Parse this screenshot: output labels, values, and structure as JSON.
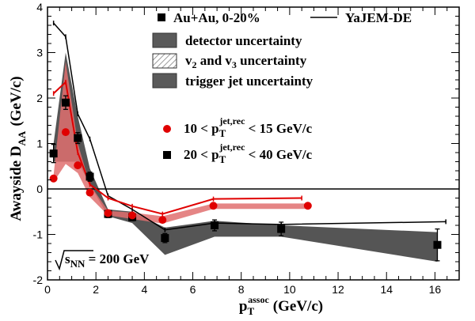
{
  "chart_data": {
    "type": "scatter",
    "title": "",
    "xlabel": "p_T^assoc (GeV/c)",
    "xlabel_main": "p",
    "xlabel_sub": "T",
    "xlabel_sup": "assoc",
    "xlabel_unit": "(GeV/c)",
    "ylabel": "Awayside D_AA (GeV/c)",
    "ylabel_main": "Awayside D",
    "ylabel_sub": "AA",
    "ylabel_unit": "(GeV/c)",
    "xlim": [
      0,
      17
    ],
    "ylim": [
      -2,
      4
    ],
    "x_ticks": [
      0,
      2,
      4,
      6,
      8,
      10,
      12,
      14,
      16
    ],
    "x_tick_labels": [
      "0",
      "2",
      "4",
      "6",
      "8",
      "10",
      "12",
      "14",
      "16"
    ],
    "y_ticks": [
      -2,
      -1,
      0,
      1,
      2,
      3,
      4
    ],
    "y_tick_labels": [
      "-2",
      "-1",
      "0",
      "1",
      "2",
      "3",
      "4"
    ],
    "energy_label": {
      "prefix": "s",
      "sub": "NN",
      "suffix": " = 200 GeV"
    },
    "legend": {
      "position": "top-right",
      "entries": [
        {
          "label": "Au+Au, 0-20%",
          "marker": "square"
        },
        {
          "label": "YaJEM-DE",
          "marker": "line"
        },
        {
          "label": "detector uncertainty",
          "marker": "box-dark"
        },
        {
          "label": "v2 and v3 uncertainty",
          "marker": "box-hatched"
        },
        {
          "label": "trigger jet uncertainty",
          "marker": "box-dark"
        }
      ],
      "flow_label": {
        "a": "v",
        "a_sub": "2",
        "b": " and v",
        "b_sub": "3",
        "rest": " uncertainty"
      },
      "range_labels": [
        {
          "prefix": "10 < p",
          "sub": "T",
          "sup": "jet,rec",
          "suffix": " < 15 GeV/c",
          "color": "#e00000"
        },
        {
          "prefix": "20 < p",
          "sub": "T",
          "sup": "jet,rec",
          "suffix": " < 40 GeV/c",
          "color": "#000000"
        }
      ]
    },
    "series": [
      {
        "name": "20 < pT jet,rec < 40 GeV/c",
        "color": "#000000",
        "marker": "square",
        "x": [
          0.25,
          0.75,
          1.25,
          1.75,
          2.5,
          3.5,
          4.85,
          6.9,
          9.65,
          16.1
        ],
        "y": [
          0.78,
          1.9,
          1.12,
          0.27,
          -0.55,
          -0.62,
          -1.08,
          -0.8,
          -0.88,
          -1.23
        ],
        "yerr": [
          0.2,
          0.15,
          0.12,
          0.1,
          0.08,
          0.08,
          0.1,
          0.12,
          0.15,
          0.35
        ]
      },
      {
        "name": "10 < pT jet,rec < 15 GeV/c",
        "color": "#e00000",
        "marker": "circle",
        "x": [
          0.25,
          0.75,
          1.25,
          1.75,
          2.5,
          3.5,
          4.75,
          6.85,
          10.75
        ],
        "y": [
          0.23,
          1.25,
          0.52,
          -0.08,
          -0.53,
          -0.58,
          -0.68,
          -0.37,
          -0.37
        ]
      }
    ],
    "bands": [
      {
        "name": "black-series uncertainty",
        "color": "#555555",
        "x": [
          0.25,
          0.75,
          1.25,
          1.75,
          2.5,
          3.5,
          4.85,
          6.9,
          9.65,
          16.1
        ],
        "upper": [
          1.0,
          3.0,
          1.6,
          0.45,
          -0.45,
          -0.5,
          -0.85,
          -0.7,
          -0.8,
          -0.95
        ],
        "lower": [
          0.6,
          0.6,
          0.6,
          0.1,
          -0.6,
          -0.75,
          -1.45,
          -1.05,
          -1.05,
          -1.6
        ]
      },
      {
        "name": "red-series uncertainty",
        "color": "#e07070",
        "x": [
          0.25,
          0.75,
          1.25,
          1.75,
          2.5,
          3.5,
          4.75,
          6.85,
          10.75
        ],
        "upper": [
          0.3,
          2.8,
          1.0,
          0.1,
          -0.48,
          -0.52,
          -0.6,
          -0.32,
          -0.32
        ],
        "lower": [
          0.15,
          0.55,
          0.35,
          -0.18,
          -0.58,
          -0.66,
          -0.76,
          -0.44,
          -0.44
        ]
      }
    ],
    "models": [
      {
        "name": "YaJEM-DE (20-40)",
        "color": "#000000",
        "x": [
          0.25,
          0.75,
          1.25,
          1.75,
          2.5,
          3.5,
          4.85,
          6.9,
          9.65,
          16.45
        ],
        "y": [
          3.65,
          3.35,
          1.65,
          1.1,
          -0.15,
          -0.45,
          -0.9,
          -0.75,
          -0.78,
          -0.72
        ]
      },
      {
        "name": "YaJEM-DE (10-15)",
        "color": "#e00000",
        "x": [
          0.25,
          0.75,
          1.25,
          1.75,
          2.5,
          3.5,
          4.75,
          6.85,
          10.5
        ],
        "y": [
          2.1,
          2.35,
          0.8,
          0.1,
          -0.2,
          -0.38,
          -0.55,
          -0.22,
          -0.2
        ]
      }
    ]
  }
}
